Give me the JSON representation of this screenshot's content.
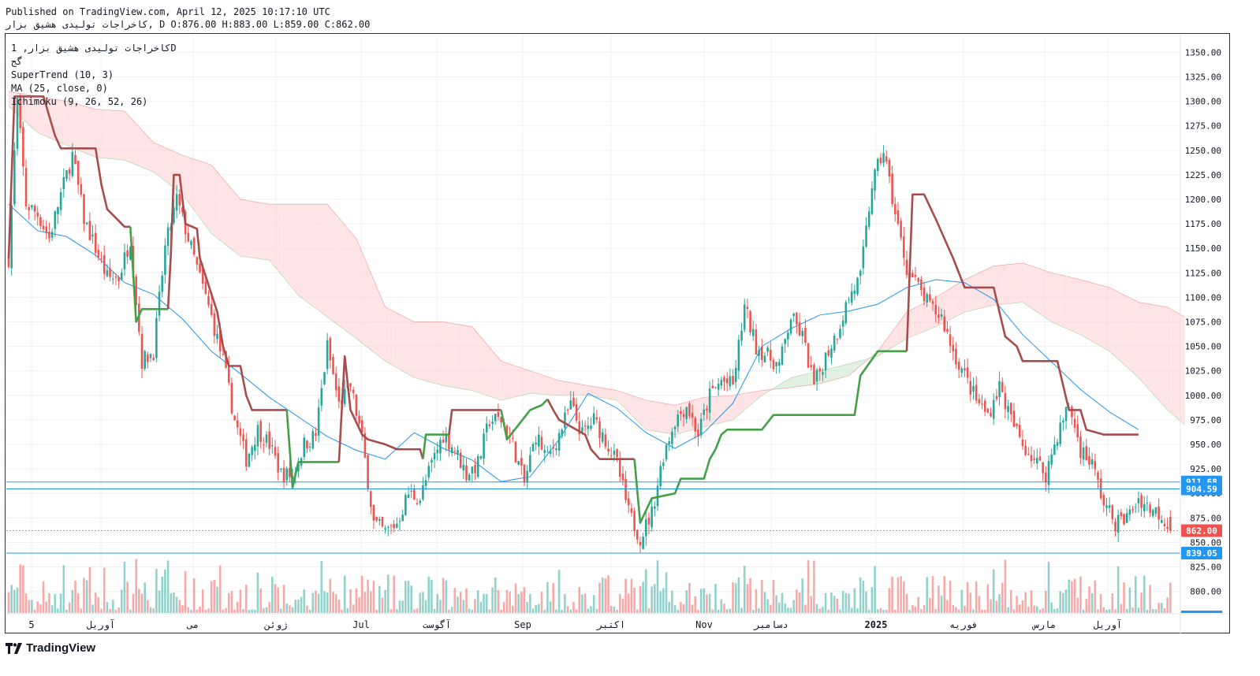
{
  "header": {
    "published_line": "Published on TradingView.com, April 12, 2025 10:17:10 UTC",
    "symbol_line": "کاخراجات تولیدی هشیق بزار, D O:876.00 H:883.00 L:859.00 C:862.00"
  },
  "legend": {
    "title": "کاخراجات تولیدی هشیق بزار, 1D",
    "subtitle": "گج",
    "indicators": [
      "SuperTrend (10, 3)",
      "MA (25, close, 0)",
      "Ichimoku (9, 26, 52, 26)"
    ]
  },
  "branding": {
    "logo_text": "TradingView",
    "logo_icon": "tradingview-logo-icon"
  },
  "colors": {
    "up": "#26a69a",
    "down": "#ef5350",
    "supertrend_up": "#43a047",
    "supertrend_down": "#a84b4b",
    "ma": "#2196f3",
    "cloud_bear": "#ffcdd2",
    "cloud_bull": "#c8e6c9",
    "hline": "#2196f3"
  },
  "chart_data": {
    "type": "candlestick",
    "ylim": [
      778,
      1368
    ],
    "y_ticks": [
      800,
      825,
      850,
      875,
      900,
      925,
      950,
      975,
      1000,
      1025,
      1050,
      1075,
      1100,
      1125,
      1150,
      1175,
      1200,
      1225,
      1250,
      1275,
      1300,
      1325,
      1350
    ],
    "x_labels": [
      "5",
      "آوریل",
      "می",
      "ژوئن",
      "Jul",
      "آگوست",
      "Sep",
      "اکتبر",
      "Nov",
      "دسامبر",
      "2025",
      "فوریه",
      "مارس",
      "آوریل"
    ],
    "price_labels": [
      {
        "value": 911.68,
        "text": "911.68",
        "color": "#2196f3"
      },
      {
        "value": 904.59,
        "text": "904.59",
        "color": "#2196f3"
      },
      {
        "value": 862.0,
        "text": "862.00",
        "color": "#ef5350"
      },
      {
        "value": 839.05,
        "text": "839.05",
        "color": "#2196f3"
      }
    ],
    "horizontal_lines": [
      911.68,
      904.59,
      839.05
    ],
    "last_close": 862.0,
    "ohlc": {
      "open": 876.0,
      "high": 883.0,
      "low": 859.0,
      "close": 862.0
    },
    "close_path": [
      [
        0,
        1140
      ],
      [
        3,
        1300
      ],
      [
        6,
        1195
      ],
      [
        10,
        1185
      ],
      [
        14,
        1160
      ],
      [
        18,
        1205
      ],
      [
        22,
        1245
      ],
      [
        26,
        1180
      ],
      [
        30,
        1150
      ],
      [
        34,
        1120
      ],
      [
        38,
        1120
      ],
      [
        42,
        1160
      ],
      [
        46,
        1035
      ],
      [
        50,
        1045
      ],
      [
        54,
        1150
      ],
      [
        58,
        1200
      ],
      [
        62,
        1160
      ],
      [
        66,
        1120
      ],
      [
        70,
        1080
      ],
      [
        74,
        1035
      ],
      [
        78,
        975
      ],
      [
        82,
        935
      ],
      [
        86,
        965
      ],
      [
        90,
        950
      ],
      [
        94,
        920
      ],
      [
        98,
        918
      ],
      [
        102,
        950
      ],
      [
        106,
        960
      ],
      [
        110,
        1050
      ],
      [
        114,
        990
      ],
      [
        118,
        1010
      ],
      [
        122,
        955
      ],
      [
        126,
        870
      ],
      [
        130,
        860
      ],
      [
        134,
        870
      ],
      [
        138,
        900
      ],
      [
        142,
        895
      ],
      [
        146,
        930
      ],
      [
        150,
        960
      ],
      [
        154,
        945
      ],
      [
        158,
        920
      ],
      [
        162,
        930
      ],
      [
        166,
        975
      ],
      [
        170,
        975
      ],
      [
        174,
        950
      ],
      [
        178,
        910
      ],
      [
        182,
        960
      ],
      [
        186,
        935
      ],
      [
        190,
        960
      ],
      [
        194,
        990
      ],
      [
        198,
        960
      ],
      [
        202,
        975
      ],
      [
        206,
        955
      ],
      [
        210,
        930
      ],
      [
        214,
        880
      ],
      [
        218,
        855
      ],
      [
        222,
        880
      ],
      [
        226,
        940
      ],
      [
        230,
        975
      ],
      [
        234,
        990
      ],
      [
        238,
        960
      ],
      [
        242,
        1000
      ],
      [
        246,
        1015
      ],
      [
        250,
        1010
      ],
      [
        254,
        1090
      ],
      [
        258,
        1050
      ],
      [
        262,
        1040
      ],
      [
        266,
        1030
      ],
      [
        270,
        1080
      ],
      [
        274,
        1060
      ],
      [
        278,
        1010
      ],
      [
        282,
        1040
      ],
      [
        286,
        1065
      ],
      [
        290,
        1100
      ],
      [
        294,
        1120
      ],
      [
        298,
        1215
      ],
      [
        302,
        1250
      ],
      [
        306,
        1185
      ],
      [
        310,
        1130
      ],
      [
        314,
        1110
      ],
      [
        318,
        1090
      ],
      [
        322,
        1080
      ],
      [
        326,
        1045
      ],
      [
        330,
        1020
      ],
      [
        334,
        995
      ],
      [
        338,
        980
      ],
      [
        342,
        1010
      ],
      [
        346,
        975
      ],
      [
        350,
        950
      ],
      [
        354,
        935
      ],
      [
        358,
        920
      ],
      [
        362,
        960
      ],
      [
        366,
        990
      ],
      [
        370,
        945
      ],
      [
        374,
        930
      ],
      [
        378,
        890
      ],
      [
        382,
        870
      ],
      [
        386,
        875
      ],
      [
        390,
        895
      ],
      [
        394,
        885
      ],
      [
        398,
        878
      ],
      [
        401,
        862
      ]
    ],
    "supertrend": [
      {
        "dir": "down",
        "points": [
          [
            0,
            1140
          ],
          [
            2,
            1305
          ],
          [
            12,
            1305
          ],
          [
            14,
            1285
          ],
          [
            16,
            1265
          ],
          [
            18,
            1252
          ],
          [
            30,
            1252
          ],
          [
            32,
            1215
          ],
          [
            34,
            1190
          ],
          [
            40,
            1172
          ],
          [
            42,
            1172
          ]
        ]
      },
      {
        "dir": "up",
        "points": [
          [
            42,
            1172
          ],
          [
            44,
            1075
          ],
          [
            46,
            1088
          ],
          [
            52,
            1088
          ],
          [
            55,
            1088
          ]
        ]
      },
      {
        "dir": "down",
        "points": [
          [
            55,
            1088
          ],
          [
            56,
            1145
          ],
          [
            57,
            1225
          ],
          [
            59,
            1225
          ],
          [
            61,
            1175
          ],
          [
            65,
            1170
          ],
          [
            66,
            1140
          ],
          [
            72,
            1085
          ],
          [
            74,
            1050
          ],
          [
            76,
            1030
          ],
          [
            80,
            1030
          ],
          [
            82,
            1000
          ],
          [
            84,
            985
          ],
          [
            94,
            985
          ],
          [
            96,
            985
          ]
        ]
      },
      {
        "dir": "up",
        "points": [
          [
            96,
            985
          ],
          [
            98,
            906
          ],
          [
            100,
            932
          ],
          [
            114,
            932
          ]
        ]
      },
      {
        "dir": "down",
        "points": [
          [
            114,
            932
          ],
          [
            116,
            1040
          ],
          [
            118,
            985
          ],
          [
            122,
            960
          ],
          [
            124,
            955
          ],
          [
            130,
            950
          ],
          [
            134,
            945
          ],
          [
            142,
            945
          ],
          [
            143,
            935
          ]
        ]
      },
      {
        "dir": "up",
        "points": [
          [
            143,
            935
          ],
          [
            144,
            960
          ],
          [
            150,
            960
          ],
          [
            152,
            960
          ]
        ]
      },
      {
        "dir": "down",
        "points": [
          [
            152,
            960
          ],
          [
            153,
            985
          ],
          [
            166,
            985
          ],
          [
            170,
            985
          ]
        ]
      },
      {
        "dir": "up",
        "points": [
          [
            170,
            985
          ],
          [
            172,
            955
          ],
          [
            176,
            970
          ],
          [
            180,
            985
          ],
          [
            184,
            990
          ],
          [
            186,
            996
          ]
        ]
      },
      {
        "dir": "down",
        "points": [
          [
            186,
            996
          ],
          [
            188,
            985
          ],
          [
            190,
            975
          ],
          [
            193,
            970
          ],
          [
            199,
            960
          ],
          [
            201,
            945
          ],
          [
            204,
            935
          ],
          [
            216,
            935
          ]
        ]
      },
      {
        "dir": "up",
        "points": [
          [
            216,
            935
          ],
          [
            218,
            870
          ],
          [
            222,
            895
          ],
          [
            230,
            900
          ],
          [
            232,
            915
          ],
          [
            240,
            915
          ],
          [
            242,
            935
          ],
          [
            244,
            945
          ],
          [
            246,
            960
          ],
          [
            248,
            965
          ],
          [
            260,
            965
          ],
          [
            264,
            980
          ],
          [
            278,
            980
          ],
          [
            292,
            980
          ],
          [
            294,
            1020
          ],
          [
            300,
            1045
          ],
          [
            306,
            1045
          ],
          [
            310,
            1045
          ]
        ]
      },
      {
        "dir": "down",
        "points": [
          [
            310,
            1045
          ],
          [
            312,
            1205
          ],
          [
            316,
            1205
          ],
          [
            320,
            1180
          ],
          [
            326,
            1140
          ],
          [
            330,
            1110
          ],
          [
            340,
            1110
          ],
          [
            344,
            1060
          ],
          [
            348,
            1050
          ],
          [
            350,
            1035
          ],
          [
            356,
            1035
          ],
          [
            362,
            1035
          ],
          [
            364,
            1010
          ],
          [
            366,
            985
          ],
          [
            370,
            985
          ],
          [
            372,
            965
          ],
          [
            378,
            960
          ],
          [
            390,
            960
          ]
        ]
      }
    ],
    "moving_average": [
      [
        0,
        1195
      ],
      [
        10,
        1168
      ],
      [
        20,
        1162
      ],
      [
        30,
        1143
      ],
      [
        40,
        1115
      ],
      [
        50,
        1103
      ],
      [
        60,
        1078
      ],
      [
        70,
        1045
      ],
      [
        80,
        1022
      ],
      [
        90,
        998
      ],
      [
        100,
        978
      ],
      [
        110,
        958
      ],
      [
        120,
        944
      ],
      [
        130,
        935
      ],
      [
        140,
        962
      ],
      [
        150,
        946
      ],
      [
        160,
        934
      ],
      [
        170,
        912
      ],
      [
        180,
        917
      ],
      [
        190,
        955
      ],
      [
        200,
        1002
      ],
      [
        210,
        987
      ],
      [
        220,
        962
      ],
      [
        230,
        946
      ],
      [
        240,
        962
      ],
      [
        250,
        992
      ],
      [
        260,
        1050
      ],
      [
        270,
        1068
      ],
      [
        280,
        1082
      ],
      [
        290,
        1086
      ],
      [
        300,
        1093
      ],
      [
        310,
        1110
      ],
      [
        320,
        1118
      ],
      [
        330,
        1115
      ],
      [
        340,
        1098
      ],
      [
        350,
        1062
      ],
      [
        360,
        1034
      ],
      [
        370,
        1006
      ],
      [
        380,
        983
      ],
      [
        390,
        965
      ]
    ],
    "cloud": {
      "top": [
        [
          0,
          1310
        ],
        [
          10,
          1305
        ],
        [
          20,
          1300
        ],
        [
          30,
          1292
        ],
        [
          40,
          1290
        ],
        [
          50,
          1258
        ],
        [
          60,
          1245
        ],
        [
          70,
          1235
        ],
        [
          80,
          1200
        ],
        [
          90,
          1195
        ],
        [
          100,
          1195
        ],
        [
          110,
          1195
        ],
        [
          120,
          1160
        ],
        [
          130,
          1090
        ],
        [
          140,
          1075
        ],
        [
          150,
          1075
        ],
        [
          160,
          1070
        ],
        [
          170,
          1035
        ],
        [
          180,
          1025
        ],
        [
          190,
          1015
        ],
        [
          200,
          1010
        ],
        [
          210,
          1005
        ],
        [
          220,
          995
        ],
        [
          230,
          990
        ],
        [
          240,
          998
        ],
        [
          250,
          1000
        ],
        [
          260,
          1005
        ],
        [
          270,
          1008
        ],
        [
          280,
          1012
        ],
        [
          290,
          1020
        ],
        [
          300,
          1045
        ],
        [
          310,
          1085
        ],
        [
          320,
          1100
        ],
        [
          330,
          1118
        ],
        [
          340,
          1132
        ],
        [
          350,
          1135
        ],
        [
          360,
          1125
        ],
        [
          370,
          1118
        ],
        [
          380,
          1110
        ],
        [
          390,
          1095
        ],
        [
          400,
          1090
        ],
        [
          406,
          1080
        ]
      ],
      "bottom": [
        [
          0,
          1295
        ],
        [
          10,
          1268
        ],
        [
          20,
          1255
        ],
        [
          30,
          1243
        ],
        [
          40,
          1240
        ],
        [
          50,
          1228
        ],
        [
          60,
          1205
        ],
        [
          70,
          1165
        ],
        [
          80,
          1142
        ],
        [
          90,
          1138
        ],
        [
          100,
          1102
        ],
        [
          110,
          1080
        ],
        [
          120,
          1058
        ],
        [
          130,
          1035
        ],
        [
          140,
          1018
        ],
        [
          150,
          1010
        ],
        [
          160,
          1005
        ],
        [
          170,
          995
        ],
        [
          180,
          1002
        ],
        [
          190,
          1000
        ],
        [
          200,
          1000
        ],
        [
          210,
          995
        ],
        [
          220,
          965
        ],
        [
          230,
          960
        ],
        [
          240,
          968
        ],
        [
          250,
          975
        ],
        [
          260,
          1000
        ],
        [
          270,
          1018
        ],
        [
          280,
          1025
        ],
        [
          290,
          1032
        ],
        [
          300,
          1040
        ],
        [
          310,
          1058
        ],
        [
          320,
          1070
        ],
        [
          330,
          1085
        ],
        [
          340,
          1092
        ],
        [
          350,
          1095
        ],
        [
          360,
          1075
        ],
        [
          370,
          1062
        ],
        [
          380,
          1045
        ],
        [
          390,
          1018
        ],
        [
          400,
          985
        ],
        [
          406,
          970
        ]
      ]
    }
  }
}
